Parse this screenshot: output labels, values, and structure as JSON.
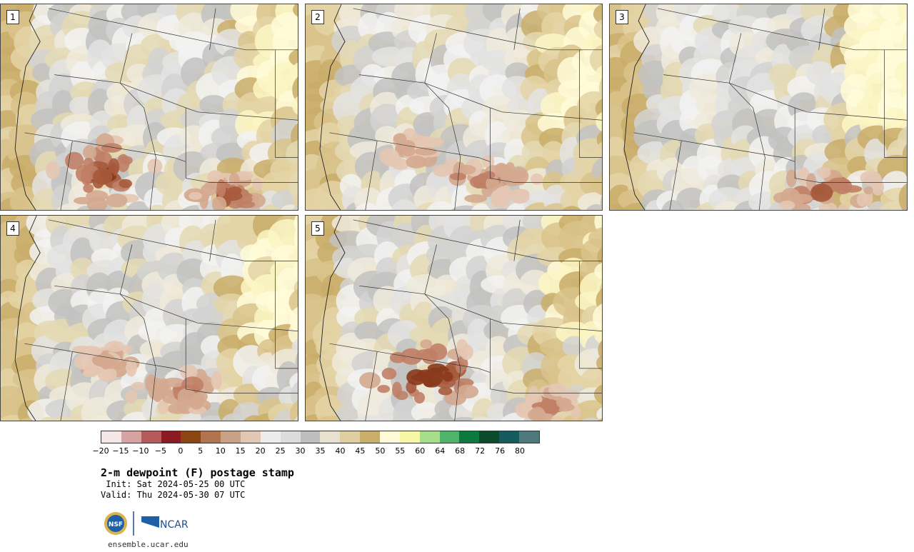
{
  "panels": [
    {
      "label": "1",
      "pattern": "low-sw-nm"
    },
    {
      "label": "2",
      "pattern": "mid"
    },
    {
      "label": "3",
      "pattern": "high-east"
    },
    {
      "label": "4",
      "pattern": "mid"
    },
    {
      "label": "5",
      "pattern": "low-sw-strong"
    }
  ],
  "colorbar": {
    "colors": [
      "#f4e6e6",
      "#d6a3a3",
      "#b65b5b",
      "#8b1a22",
      "#8c4412",
      "#b07450",
      "#c8a287",
      "#e1c6b4",
      "#ececec",
      "#dcdcdc",
      "#bdbdbd",
      "#e6e2cf",
      "#dfcfa0",
      "#c9ad6a",
      "#fffbd8",
      "#f7f7a6",
      "#a6de8c",
      "#4fb36a",
      "#0c7a3e",
      "#0b4a2a",
      "#155a5e",
      "#4e7a7c"
    ],
    "ticks": [
      "−20",
      "−15",
      "−10",
      "−5",
      "0",
      "5",
      "10",
      "15",
      "20",
      "25",
      "30",
      "35",
      "40",
      "45",
      "50",
      "55",
      "60",
      "64",
      "68",
      "72",
      "76",
      "80"
    ]
  },
  "title": "2-m dewpoint (F) postage stamp",
  "init": " Init: Sat 2024-05-25 00 UTC",
  "valid": "Valid: Thu 2024-05-30 07 UTC",
  "logo": {
    "nsf": "NSF",
    "ncar": "NCAR"
  },
  "site": "ensemble.ucar.edu"
}
